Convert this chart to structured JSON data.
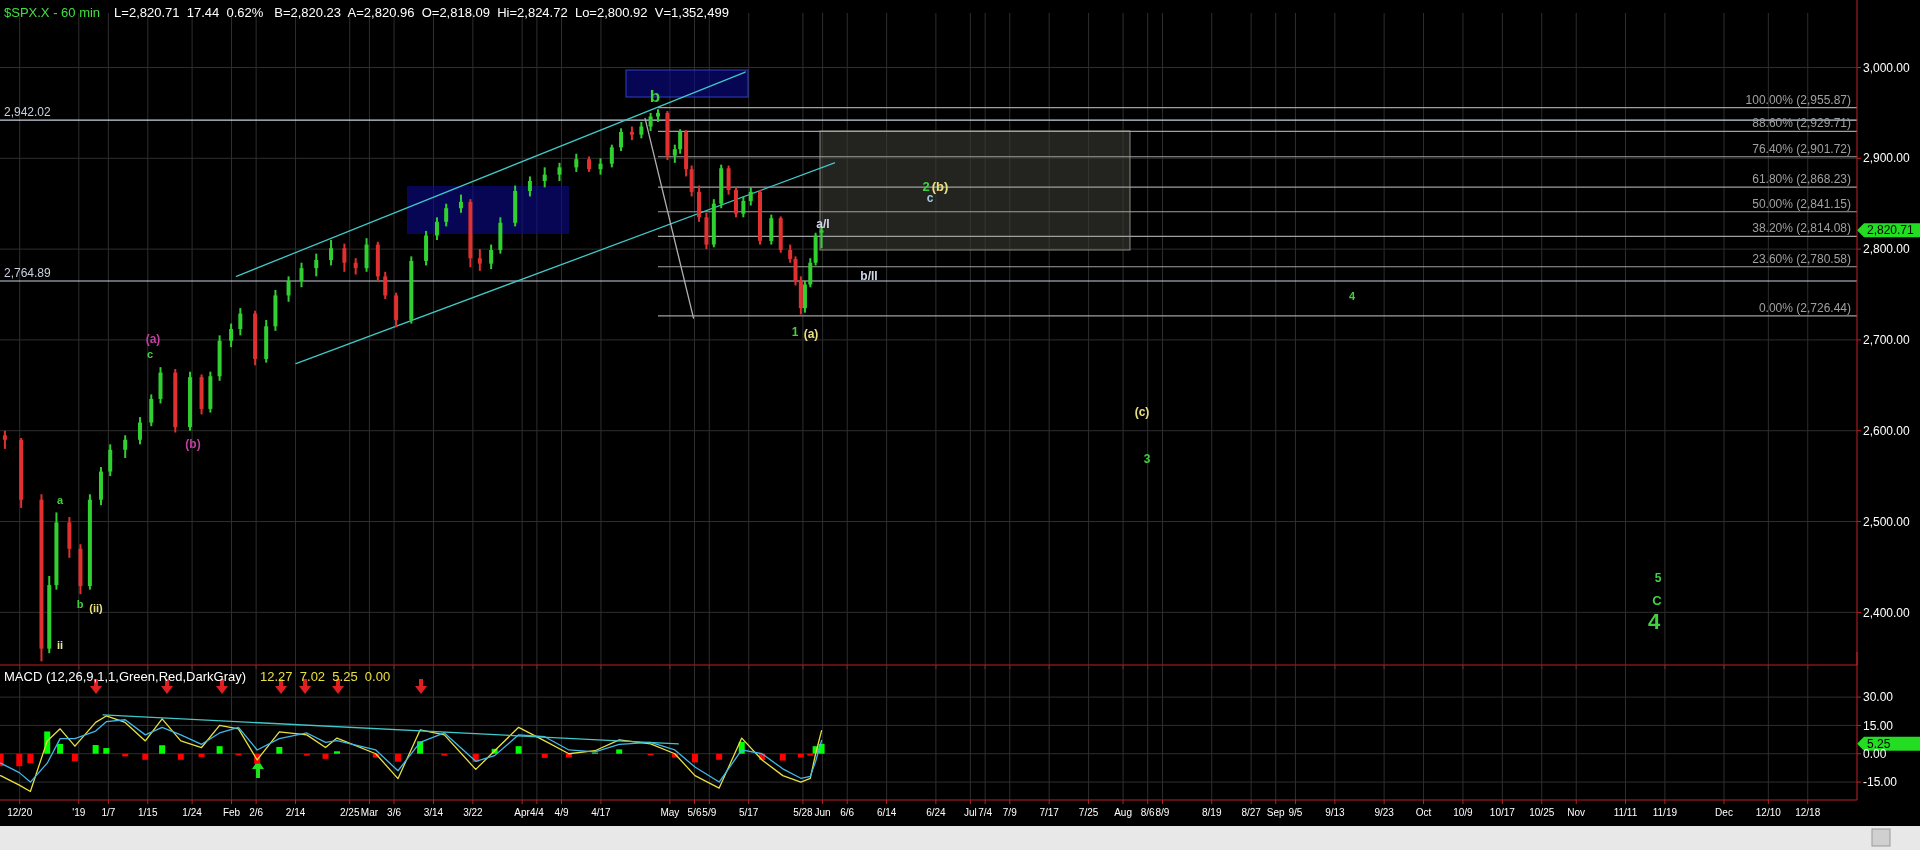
{
  "chart_data": [
    {
      "type": "candlestick",
      "title": "$SPX.X - 60 min",
      "subtitle": "L=2,820.71  17.44  0.62%   B=2,820.23  A=2,820.96  O=2,818.09  Hi=2,824.72  Lo=2,800.92  V=1,352,499",
      "x": [
        "2018-12-17T00:00",
        "2018-12-20T07:00",
        "2018-12-24T10:00",
        "2018-12-26T00:00",
        "2018-12-27T11:00",
        "2018-12-30T02:00",
        "2019-01-01T08:00",
        "2019-01-03T06:00",
        "2019-01-05T12:00",
        "2019-01-07T09:00",
        "2019-01-10T10:00",
        "2019-01-13T10:00",
        "2019-01-15T17:00",
        "2019-01-17T14:00",
        "2019-01-20T14:00",
        "2019-01-23T14:00",
        "2019-01-25T22:00",
        "2019-01-27T17:00",
        "2019-01-29T14:00",
        "2019-01-31T22:00",
        "2019-02-02T19:00",
        "2019-02-05T19:00",
        "2019-02-08T01:00",
        "2019-02-09T22:00",
        "2019-02-12T14:00",
        "2019-02-15T05:00",
        "2019-02-18T05:00",
        "2019-02-21T05:00",
        "2019-02-23T22:00",
        "2019-02-26T05:00",
        "2019-02-28T10:00",
        "2019-03-02T17:00",
        "2019-03-04T05:00",
        "2019-03-06T10:00",
        "2019-03-09T12:00",
        "2019-03-12T12:00",
        "2019-03-14T17:00",
        "2019-03-16T14:00",
        "2019-03-19T14:00",
        "2019-03-21T12:00",
        "2019-03-23T10:00",
        "2019-03-25T17:00",
        "2019-03-27T14:00",
        "2019-03-30T14:00",
        "2019-04-02T14:00",
        "2019-04-05T14:00",
        "2019-04-08T14:00",
        "2019-04-12T00:00",
        "2019-04-14T14:00",
        "2019-04-16T22:00",
        "2019-04-19T05:00",
        "2019-04-21T02:00",
        "2019-04-23T07:00",
        "2019-04-25T05:00",
        "2019-04-27T02:00",
        "2019-04-28T14:00",
        "2019-04-30T12:00",
        "2019-05-02T00:00",
        "2019-05-03T02:00",
        "2019-05-04T07:00",
        "2019-05-05T10:00",
        "2019-05-06T22:00",
        "2019-05-08T10:00",
        "2019-05-09T22:00",
        "2019-05-11T10:00",
        "2019-05-12T22:00",
        "2019-05-14T10:00",
        "2019-05-15T22:00",
        "2019-05-17T10:00",
        "2019-05-19T07:00",
        "2019-05-21T14:00",
        "2019-05-23T12:00",
        "2019-05-25T10:00",
        "2019-05-26T12:00",
        "2019-05-27T14:00",
        "2019-05-28T10:00",
        "2019-05-29T12:00",
        "2019-05-30T14:00",
        "2019-05-31T19:00"
      ],
      "ohlc": [
        [
          2595,
          2600,
          2580,
          2590
        ],
        [
          2590,
          2592,
          2515,
          2524
        ],
        [
          2524,
          2530,
          2346,
          2360
        ],
        [
          2360,
          2440,
          2355,
          2430
        ],
        [
          2430,
          2510,
          2425,
          2499
        ],
        [
          2499,
          2505,
          2460,
          2470
        ],
        [
          2470,
          2475,
          2420,
          2429
        ],
        [
          2429,
          2530,
          2425,
          2524
        ],
        [
          2524,
          2560,
          2518,
          2555
        ],
        [
          2555,
          2585,
          2550,
          2579
        ],
        [
          2579,
          2595,
          2570,
          2590
        ],
        [
          2590,
          2615,
          2585,
          2609
        ],
        [
          2609,
          2640,
          2605,
          2635
        ],
        [
          2635,
          2670,
          2630,
          2664
        ],
        [
          2664,
          2668,
          2598,
          2604
        ],
        [
          2604,
          2665,
          2600,
          2659
        ],
        [
          2659,
          2662,
          2618,
          2624
        ],
        [
          2624,
          2665,
          2620,
          2660
        ],
        [
          2660,
          2705,
          2655,
          2699
        ],
        [
          2699,
          2718,
          2692,
          2712
        ],
        [
          2712,
          2735,
          2705,
          2729
        ],
        [
          2729,
          2732,
          2672,
          2679
        ],
        [
          2679,
          2722,
          2675,
          2715
        ],
        [
          2715,
          2755,
          2710,
          2749
        ],
        [
          2749,
          2770,
          2742,
          2765
        ],
        [
          2765,
          2785,
          2758,
          2779
        ],
        [
          2779,
          2795,
          2770,
          2788
        ],
        [
          2788,
          2810,
          2782,
          2801
        ],
        [
          2801,
          2806,
          2775,
          2785
        ],
        [
          2785,
          2790,
          2772,
          2779
        ],
        [
          2779,
          2812,
          2775,
          2805
        ],
        [
          2805,
          2808,
          2765,
          2770
        ],
        [
          2770,
          2775,
          2745,
          2749
        ],
        [
          2749,
          2752,
          2714,
          2722
        ],
        [
          2722,
          2792,
          2718,
          2787
        ],
        [
          2787,
          2820,
          2782,
          2815
        ],
        [
          2815,
          2835,
          2810,
          2830
        ],
        [
          2830,
          2850,
          2825,
          2845
        ],
        [
          2845,
          2860,
          2840,
          2852
        ],
        [
          2852,
          2855,
          2780,
          2790
        ],
        [
          2790,
          2800,
          2776,
          2784
        ],
        [
          2784,
          2805,
          2778,
          2799
        ],
        [
          2799,
          2835,
          2795,
          2829
        ],
        [
          2829,
          2870,
          2825,
          2864
        ],
        [
          2864,
          2880,
          2858,
          2875
        ],
        [
          2875,
          2890,
          2868,
          2882
        ],
        [
          2882,
          2895,
          2875,
          2890
        ],
        [
          2890,
          2905,
          2885,
          2899
        ],
        [
          2899,
          2902,
          2885,
          2888
        ],
        [
          2888,
          2900,
          2882,
          2894
        ],
        [
          2894,
          2915,
          2890,
          2912
        ],
        [
          2912,
          2933,
          2908,
          2929
        ],
        [
          2929,
          2935,
          2920,
          2926
        ],
        [
          2926,
          2940,
          2922,
          2935
        ],
        [
          2935,
          2950,
          2930,
          2946
        ],
        [
          2946,
          2954,
          2940,
          2950
        ],
        [
          2950,
          2952,
          2898,
          2903
        ],
        [
          2903,
          2915,
          2895,
          2910
        ],
        [
          2910,
          2932,
          2905,
          2929
        ],
        [
          2929,
          2931,
          2880,
          2888
        ],
        [
          2888,
          2892,
          2858,
          2863
        ],
        [
          2863,
          2870,
          2830,
          2835
        ],
        [
          2835,
          2840,
          2800,
          2805
        ],
        [
          2805,
          2855,
          2802,
          2850
        ],
        [
          2850,
          2893,
          2845,
          2889
        ],
        [
          2889,
          2892,
          2860,
          2865
        ],
        [
          2865,
          2868,
          2835,
          2839
        ],
        [
          2839,
          2858,
          2835,
          2853
        ],
        [
          2853,
          2868,
          2848,
          2863
        ],
        [
          2863,
          2865,
          2805,
          2809
        ],
        [
          2809,
          2838,
          2805,
          2834
        ],
        [
          2834,
          2836,
          2796,
          2799
        ],
        [
          2799,
          2805,
          2785,
          2789
        ],
        [
          2789,
          2792,
          2760,
          2765
        ],
        [
          2765,
          2770,
          2728,
          2735
        ],
        [
          2735,
          2765,
          2730,
          2761
        ],
        [
          2761,
          2790,
          2758,
          2785
        ],
        [
          2785,
          2818,
          2782,
          2815
        ],
        [
          2818.09,
          2824.72,
          2800.92,
          2820.71
        ]
      ],
      "series": [
        {
          "type": "line",
          "color": "#40c8c8",
          "x": [
            "2019-02-02T00:00",
            "2019-05-16T07:00"
          ],
          "values": [
            2770,
            2995
          ]
        },
        {
          "type": "line",
          "color": "#40c8c8",
          "x": [
            "2019-02-14T02:00",
            "2019-06-03T10:00"
          ],
          "values": [
            2674,
            2895
          ]
        },
        {
          "type": "line",
          "color": "#b0b0b0",
          "x": [
            "2019-04-25T23:00",
            "2019-05-05T19:00"
          ],
          "values": [
            2944,
            2724
          ]
        }
      ],
      "xlim": [
        "2018-12-16",
        "2019-12-28"
      ],
      "xticks": [
        {
          "value": "2018-12-20",
          "label": null
        },
        {
          "value": "2019",
          "label": null
        },
        {
          "value": "2019-01-07",
          "label": null
        },
        {
          "value": "2019-01-15",
          "label": null
        },
        {
          "value": "2019-01-24",
          "label": null
        },
        {
          "value": "2019-02",
          "label": null
        },
        {
          "value": "2019-02-06",
          "label": null
        },
        {
          "value": "2019-02-14",
          "label": null
        },
        {
          "value": "2019-02-25",
          "label": null
        },
        {
          "value": "2019-03",
          "label": null
        },
        {
          "value": "2019-03-06",
          "label": null
        },
        {
          "value": "2019-03-14",
          "label": null
        },
        {
          "value": "2019-03-22",
          "label": null
        },
        {
          "value": "2019-04",
          "label": null
        },
        {
          "value": "2019-04-04",
          "label": null
        },
        {
          "value": "2019-04-09",
          "label": null
        },
        {
          "value": "2019-04-17",
          "label": null
        },
        {
          "value": "2019-05",
          "label": null
        },
        {
          "value": "2019-05-06",
          "label": null
        },
        {
          "value": "2019-05-09",
          "label": null
        },
        {
          "value": "2019-05-17",
          "label": null
        },
        {
          "value": "2019-05-28",
          "label": null
        },
        {
          "value": "2019-06",
          "label": null
        },
        {
          "value": "2019-06-06",
          "label": null
        },
        {
          "value": "2019-06-14",
          "label": null
        },
        {
          "value": "2019-06-24",
          "label": null
        },
        {
          "value": "2019-07",
          "label": null
        },
        {
          "value": "2019-07-04",
          "label": null
        },
        {
          "value": "2019-07-09",
          "label": null
        },
        {
          "value": "2019-07-17",
          "label": null
        },
        {
          "value": "2019-07-25",
          "label": null
        },
        {
          "value": "2019-08",
          "label": null
        },
        {
          "value": "2019-08-06",
          "label": null
        },
        {
          "value": "2019-08-09",
          "label": null
        },
        {
          "value": "2019-08-19",
          "label": null
        },
        {
          "value": "2019-08-27",
          "label": null
        },
        {
          "value": "2019-09",
          "label": null
        },
        {
          "value": "2019-09-05",
          "label": null
        },
        {
          "value": "2019-09-13",
          "label": null
        },
        {
          "value": "2019-09-23",
          "label": null
        },
        {
          "value": "2019-10",
          "label": null
        },
        {
          "value": "2019-10-09",
          "label": null
        },
        {
          "value": "2019-10-17",
          "label": null
        },
        {
          "value": "2019-10-25",
          "label": null
        },
        {
          "value": "2019-11",
          "label": null
        },
        {
          "value": "2019-11-11",
          "label": null
        },
        {
          "value": "2019-11-19",
          "label": null
        },
        {
          "value": "2019-12",
          "label": null
        },
        {
          "value": "2019-12-10",
          "label": null
        },
        {
          "value": "2019-12-18",
          "label": null
        }
      ],
      "ylim": [
        2342,
        3060
      ],
      "yticks": [
        {
          "value": 2400,
          "label": "2,400.00"
        },
        {
          "value": 2500,
          "label": "2,500.00"
        },
        {
          "value": 2600,
          "label": "2,600.00"
        },
        {
          "value": 2700,
          "label": "2,700.00"
        },
        {
          "value": 2800,
          "label": "2,800.00"
        },
        {
          "value": 2900,
          "label": "2,900.00"
        },
        {
          "value": 3000,
          "label": "3,000.00"
        }
      ],
      "tick_labels": "y",
      "grid": true,
      "ref_lines": [
        {
          "axis": "y",
          "value": 2942.02,
          "label": "2,942.02",
          "color": "#c8d0e0"
        },
        {
          "axis": "y",
          "value": 2764.89,
          "label": "2,764.89",
          "color": "#c8d0e0"
        },
        {
          "axis": "y",
          "value": 2955.87,
          "label": "100.00% (2,955.87)",
          "color": "#a0a0a0"
        },
        {
          "axis": "y",
          "value": 2929.71,
          "label": "88.60% (2,929.71)",
          "color": "#a0a0a0"
        },
        {
          "axis": "y",
          "value": 2901.72,
          "label": "76.40% (2,901.72)",
          "color": "#a0a0a0"
        },
        {
          "axis": "y",
          "value": 2868.23,
          "label": "61.80% (2,868.23)",
          "color": "#a0a0a0"
        },
        {
          "axis": "y",
          "value": 2841.15,
          "label": "50.00% (2,841.15)",
          "color": "#a0a0a0"
        },
        {
          "axis": "y",
          "value": 2814.08,
          "label": "38.20% (2,814.08)",
          "color": "#a0a0a0"
        },
        {
          "axis": "y",
          "value": 2780.58,
          "label": "23.60% (2,780.58)",
          "color": "#a0a0a0"
        },
        {
          "axis": "y",
          "value": 2726.44,
          "label": "0.00% (2,726.44)",
          "color": "#a0a0a0"
        }
      ],
      "annotations": [
        "ii",
        "a",
        "b",
        "(ii)",
        "(a)",
        "c",
        "(b)",
        "b",
        "1",
        "(a)",
        "a/I",
        "b/II",
        "2",
        "(b)",
        "c",
        "4",
        "(c)",
        "3",
        "5",
        "C",
        "4",
        "2,820.71"
      ]
    },
    {
      "type": "line",
      "title": "MACD (12,26,9,1,1,Green,Red,DarkGray)",
      "subtitle": "12.27  7.02  5.25  0.00",
      "series": [
        {
          "type": "bar",
          "x": [
            "2018-12-16T03:00",
            "2018-12-19T22:00",
            "2018-12-22T04:00",
            "2018-12-25T14:00",
            "2018-12-28T05:00",
            "2018-12-31T05:00",
            "2019-01-04T10:00",
            "2019-01-06T14:00",
            "2019-01-10T10:00",
            "2019-01-14T12:00",
            "2019-01-17T22:00",
            "2019-01-21T17:00",
            "2019-01-25T22:00",
            "2019-01-29T14:00",
            "2019-02-02T10:00",
            "2019-02-06T05:00",
            "2019-02-10T17:00",
            "2019-02-16T07:00",
            "2019-02-20T02:00",
            "2019-02-22T10:00",
            "2019-03-02T07:00",
            "2019-03-06T19:00",
            "2019-03-11T07:00",
            "2019-03-16T05:00",
            "2019-03-22T14:00",
            "2019-03-26T10:00",
            "2019-03-31T07:00",
            "2019-04-05T14:00",
            "2019-04-10T12:00",
            "2019-04-15T19:00",
            "2019-04-20T17:00",
            "2019-04-27T02:00",
            "2019-05-02T00:00",
            "2019-05-06T02:00",
            "2019-05-11T00:00",
            "2019-05-15T14:00",
            "2019-05-19T17:00",
            "2019-05-23T22:00",
            "2019-05-27T14:00",
            "2019-05-29T12:00",
            "2019-05-30T14:00",
            "2019-05-31T19:00"
          ],
          "values": [
            -6.6,
            -6.6,
            -5,
            11.8,
            5.2,
            -4,
            4.6,
            3,
            -1.4,
            -3.2,
            4.5,
            -3.2,
            -1.7,
            4,
            -0.8,
            -5.3,
            3.6,
            -1,
            -2.7,
            1.3,
            -2,
            -4.2,
            6.6,
            -1,
            -4.3,
            2.6,
            4,
            -2.2,
            -2,
            0.6,
            2.3,
            -0.8,
            -2,
            -4.6,
            -3.2,
            6.3,
            -3.3,
            -3.6,
            -2,
            -1,
            4,
            5.25
          ],
          "colors": [
            "#ff0000",
            "#ff0000",
            "#ff0000",
            "#00ff00",
            "#00ff00",
            "#ff0000",
            "#00ff00",
            "#00ff00",
            "#ff0000",
            "#ff0000",
            "#00ff00",
            "#ff0000",
            "#ff0000",
            "#00ff00",
            "#ff0000",
            "#ff0000",
            "#00ff00",
            "#ff0000",
            "#ff0000",
            "#00ff00",
            "#ff0000",
            "#ff0000",
            "#00ff00",
            "#ff0000",
            "#ff0000",
            "#00ff00",
            "#00ff00",
            "#ff0000",
            "#ff0000",
            "#00ff00",
            "#00ff00",
            "#ff0000",
            "#ff0000",
            "#ff0000",
            "#ff0000",
            "#00ff00",
            "#ff0000",
            "#ff0000",
            "#ff0000",
            "#ff0000",
            "#00ff00",
            "#00ff00"
          ]
        },
        {
          "type": "line",
          "color": "#e8e040",
          "x": [
            "2018-12-16T03:00",
            "2018-12-19T22:00",
            "2018-12-22T04:00",
            "2018-12-25T14:00",
            "2018-12-28T05:00",
            "2018-12-31T05:00",
            "2019-01-04T10:00",
            "2019-01-06T14:00",
            "2019-01-10T10:00",
            "2019-01-14T12:00",
            "2019-01-17T22:00",
            "2019-01-21T17:00",
            "2019-01-25T22:00",
            "2019-01-29T14:00",
            "2019-02-02T10:00",
            "2019-02-06T05:00",
            "2019-02-10T17:00",
            "2019-02-16T07:00",
            "2019-02-20T02:00",
            "2019-02-22T10:00",
            "2019-03-02T07:00",
            "2019-03-06T19:00",
            "2019-03-11T07:00",
            "2019-03-16T05:00",
            "2019-03-22T14:00",
            "2019-03-26T10:00",
            "2019-03-31T07:00",
            "2019-04-05T14:00",
            "2019-04-10T12:00",
            "2019-04-15T19:00",
            "2019-04-20T17:00",
            "2019-04-27T02:00",
            "2019-05-02T00:00",
            "2019-05-06T02:00",
            "2019-05-11T00:00",
            "2019-05-15T14:00",
            "2019-05-19T17:00",
            "2019-05-23T22:00",
            "2019-05-27T14:00",
            "2019-05-29T12:00",
            "2019-05-30T14:00",
            "2019-05-31T19:00"
          ],
          "values": [
            -11.6,
            -16.6,
            -20,
            6.8,
            13.2,
            4,
            16.6,
            20,
            16.6,
            6.8,
            18.5,
            6.8,
            3.3,
            15,
            13.2,
            -3.3,
            11.6,
            10,
            3.3,
            8.3,
            0,
            -13.2,
            12.6,
            10,
            -8.3,
            1.6,
            14,
            6.8,
            0,
            1.6,
            7.3,
            5.2,
            0,
            -11.6,
            -18.2,
            8.3,
            -3.3,
            -11.6,
            -15,
            -13,
            0,
            12.27
          ]
        },
        {
          "type": "line",
          "color": "#40b8e8",
          "x": [
            "2018-12-16T03:00",
            "2018-12-19T22:00",
            "2018-12-22T04:00",
            "2018-12-25T14:00",
            "2018-12-28T05:00",
            "2018-12-31T05:00",
            "2019-01-04T10:00",
            "2019-01-06T14:00",
            "2019-01-10T10:00",
            "2019-01-14T12:00",
            "2019-01-17T22:00",
            "2019-01-21T17:00",
            "2019-01-25T22:00",
            "2019-01-29T14:00",
            "2019-02-02T10:00",
            "2019-02-06T05:00",
            "2019-02-10T17:00",
            "2019-02-16T07:00",
            "2019-02-20T02:00",
            "2019-02-22T10:00",
            "2019-03-02T07:00",
            "2019-03-06T19:00",
            "2019-03-11T07:00",
            "2019-03-16T05:00",
            "2019-03-22T14:00",
            "2019-03-26T10:00",
            "2019-03-31T07:00",
            "2019-04-05T14:00",
            "2019-04-10T12:00",
            "2019-04-15T19:00",
            "2019-04-20T17:00",
            "2019-04-27T02:00",
            "2019-05-02T00:00",
            "2019-05-06T02:00",
            "2019-05-11T00:00",
            "2019-05-15T14:00",
            "2019-05-19T17:00",
            "2019-05-23T22:00",
            "2019-05-27T14:00",
            "2019-05-29T12:00",
            "2019-05-30T14:00",
            "2019-05-31T19:00"
          ],
          "values": [
            -5,
            -10,
            -15,
            -5,
            8,
            8,
            12,
            17,
            18,
            10,
            14,
            10,
            5,
            11,
            14,
            2,
            8,
            11,
            6,
            7,
            2,
            -9,
            6,
            11,
            -4,
            -1,
            10,
            9,
            2,
            1,
            5,
            6,
            2,
            -7,
            -15,
            2,
            0,
            -8,
            -13,
            -12,
            -4,
            7.02
          ]
        },
        {
          "type": "line",
          "color": "#40c8c8",
          "x": [
            "2019-01-05T22:00",
            "2019-05-02T17:00"
          ],
          "values": [
            20.6,
            5.2
          ]
        }
      ],
      "xlim": [
        "2018-12-16",
        "2019-12-28"
      ],
      "xticks": [
        {
          "value": "2018-12-20",
          "label": "12/20"
        },
        {
          "value": "2019",
          "label": "'19"
        },
        {
          "value": "2019-01-07",
          "label": "1/7"
        },
        {
          "value": "2019-01-15",
          "label": "1/15"
        },
        {
          "value": "2019-01-24",
          "label": "1/24"
        },
        {
          "value": "2019-02",
          "label": "Feb"
        },
        {
          "value": "2019-02-06",
          "label": "2/6"
        },
        {
          "value": "2019-02-14",
          "label": "2/14"
        },
        {
          "value": "2019-02-25",
          "label": "2/25"
        },
        {
          "value": "2019-03",
          "label": "Mar"
        },
        {
          "value": "2019-03-06",
          "label": "3/6"
        },
        {
          "value": "2019-03-14",
          "label": "3/14"
        },
        {
          "value": "2019-03-22",
          "label": "3/22"
        },
        {
          "value": "2019-04",
          "label": "Apr"
        },
        {
          "value": "2019-04-04",
          "label": "4/4"
        },
        {
          "value": "2019-04-09",
          "label": "4/9"
        },
        {
          "value": "2019-04-17",
          "label": "4/17"
        },
        {
          "value": "2019-05",
          "label": "May"
        },
        {
          "value": "2019-05-06",
          "label": "5/6"
        },
        {
          "value": "2019-05-09",
          "label": "5/9"
        },
        {
          "value": "2019-05-17",
          "label": "5/17"
        },
        {
          "value": "2019-05-28",
          "label": "5/28"
        },
        {
          "value": "2019-06",
          "label": "Jun"
        },
        {
          "value": "2019-06-06",
          "label": "6/6"
        },
        {
          "value": "2019-06-14",
          "label": "6/14"
        },
        {
          "value": "2019-06-24",
          "label": "6/24"
        },
        {
          "value": "2019-07",
          "label": "Jul"
        },
        {
          "value": "2019-07-04",
          "label": "7/4"
        },
        {
          "value": "2019-07-09",
          "label": "7/9"
        },
        {
          "value": "2019-07-17",
          "label": "7/17"
        },
        {
          "value": "2019-07-25",
          "label": "7/25"
        },
        {
          "value": "2019-08",
          "label": "Aug"
        },
        {
          "value": "2019-08-06",
          "label": "8/6"
        },
        {
          "value": "2019-08-09",
          "label": "8/9"
        },
        {
          "value": "2019-08-19",
          "label": "8/19"
        },
        {
          "value": "2019-08-27",
          "label": "8/27"
        },
        {
          "value": "2019-09",
          "label": "Sep"
        },
        {
          "value": "2019-09-05",
          "label": "9/5"
        },
        {
          "value": "2019-09-13",
          "label": "9/13"
        },
        {
          "value": "2019-09-23",
          "label": "9/23"
        },
        {
          "value": "2019-10",
          "label": "Oct"
        },
        {
          "value": "2019-10-09",
          "label": "10/9"
        },
        {
          "value": "2019-10-17",
          "label": "10/17"
        },
        {
          "value": "2019-10-25",
          "label": "10/25"
        },
        {
          "value": "2019-11",
          "label": "Nov"
        },
        {
          "value": "2019-11-11",
          "label": "11/11"
        },
        {
          "value": "2019-11-19",
          "label": "11/19"
        },
        {
          "value": "2019-12",
          "label": "Dec"
        },
        {
          "value": "2019-12-10",
          "label": "12/10"
        },
        {
          "value": "2019-12-18",
          "label": "12/18"
        }
      ],
      "ylim": [
        -24.5,
        47
      ],
      "yticks": [
        {
          "value": -15,
          "label": "-15.00"
        },
        {
          "value": 0,
          "label": "0.00"
        },
        {
          "value": 15,
          "label": "15.00"
        },
        {
          "value": 30,
          "label": "30.00"
        }
      ],
      "grid": true,
      "annotations": [
        "5.25"
      ]
    }
  ]
}
